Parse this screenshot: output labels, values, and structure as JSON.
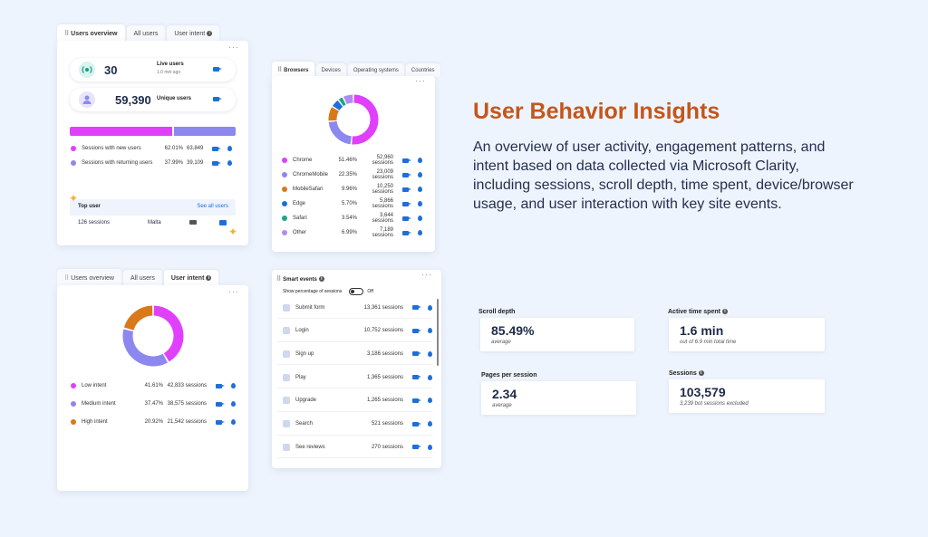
{
  "card_users": {
    "tabs": [
      "Users overview",
      "All users",
      "User intent"
    ],
    "live": {
      "value": "30",
      "label": "Live users",
      "sub": "1.0 min ago"
    },
    "unique": {
      "value": "59,390",
      "label": "Unique users"
    },
    "split": {
      "new_pct": 0.6201,
      "colors": [
        "#e040fb",
        "#8c88ef"
      ]
    },
    "rows": [
      {
        "label": "Sessions with new users",
        "pct": "62.01%",
        "count": "63,849",
        "color": "#e040fb"
      },
      {
        "label": "Sessions with returning users",
        "pct": "37.99%",
        "count": "39,109",
        "color": "#8c88ef"
      }
    ],
    "top_user": {
      "title": "Top user",
      "link": "See all users",
      "sessions": "126 sessions",
      "country": "Malta"
    }
  },
  "card_browsers": {
    "tabs": [
      "Browsers",
      "Devices",
      "Operating systems",
      "Countries"
    ],
    "rows": [
      {
        "label": "Chrome",
        "pct": "51.46%",
        "count": "52,960 sessions",
        "color": "#e040fb",
        "value": 51.46
      },
      {
        "label": "ChromeMobile",
        "pct": "22.35%",
        "count": "23,009 sessions",
        "color": "#8c88ef",
        "value": 22.35
      },
      {
        "label": "MobileSafari",
        "pct": "9.96%",
        "count": "10,250 sessions",
        "color": "#d9791b",
        "value": 9.96
      },
      {
        "label": "Edge",
        "pct": "5.70%",
        "count": "5,866 sessions",
        "color": "#1e6fd9",
        "value": 5.7
      },
      {
        "label": "Safari",
        "pct": "3.54%",
        "count": "3,644 sessions",
        "color": "#21a48a",
        "value": 3.54
      },
      {
        "label": "Other",
        "pct": "6.99%",
        "count": "7,189 sessions",
        "color": "#b08cf0",
        "value": 6.99
      }
    ]
  },
  "card_intent": {
    "tabs": [
      "Users overview",
      "All users",
      "User intent"
    ],
    "rows": [
      {
        "label": "Low intent",
        "pct": "41.61%",
        "count": "42,833 sessions",
        "color": "#e040fb",
        "value": 41.61
      },
      {
        "label": "Medium intent",
        "pct": "37.47%",
        "count": "38,575 sessions",
        "color": "#8c88ef",
        "value": 37.47
      },
      {
        "label": "High intent",
        "pct": "20.92%",
        "count": "21,542 sessions",
        "color": "#d9791b",
        "value": 20.92
      }
    ]
  },
  "card_events": {
    "title": "Smart events",
    "toggle_label": "Show percentage of sessions",
    "toggle_state": "Off",
    "rows": [
      {
        "label": "Submit form",
        "count": "13,361 sessions"
      },
      {
        "label": "Login",
        "count": "10,752 sessions"
      },
      {
        "label": "Sign up",
        "count": "3,186 sessions"
      },
      {
        "label": "Play",
        "count": "1,365 sessions"
      },
      {
        "label": "Upgrade",
        "count": "1,265 sessions"
      },
      {
        "label": "Search",
        "count": "521 sessions"
      },
      {
        "label": "See reviews",
        "count": "270 sessions"
      }
    ]
  },
  "hero": {
    "title": "User Behavior Insights",
    "body": "An overview of user activity, engagement patterns, and intent based on data collected via Microsoft Clarity, including sessions, scroll depth, time spent, device/browser usage, and user interaction with key site events."
  },
  "metrics": {
    "scroll": {
      "label": "Scroll depth",
      "value": "85.49%",
      "sub": "average"
    },
    "active": {
      "label": "Active time spent",
      "value": "1.6 min",
      "sub": "out of 6.9 min total time"
    },
    "pages": {
      "label": "Pages per session",
      "value": "2.34",
      "sub": "average"
    },
    "sessions": {
      "label": "Sessions",
      "value": "103,579",
      "sub": "3,239 bot sessions excluded"
    }
  }
}
